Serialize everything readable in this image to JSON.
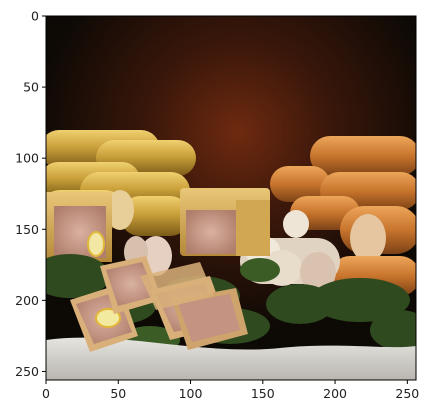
{
  "image": {
    "description_icon": "photo-icon",
    "x_ticks": [
      "0",
      "50",
      "100",
      "150",
      "200",
      "250"
    ],
    "y_ticks": [
      "0",
      "50",
      "100",
      "150",
      "200",
      "250"
    ],
    "colors": {
      "background_dark": "#120c06",
      "sausage_yellow": "#c99a2c",
      "sausage_orange": "#c7772e",
      "pate_pink": "#c69f8e",
      "parsley_green": "#2e4a1e",
      "tablecloth": "#d9d7d1"
    }
  }
}
